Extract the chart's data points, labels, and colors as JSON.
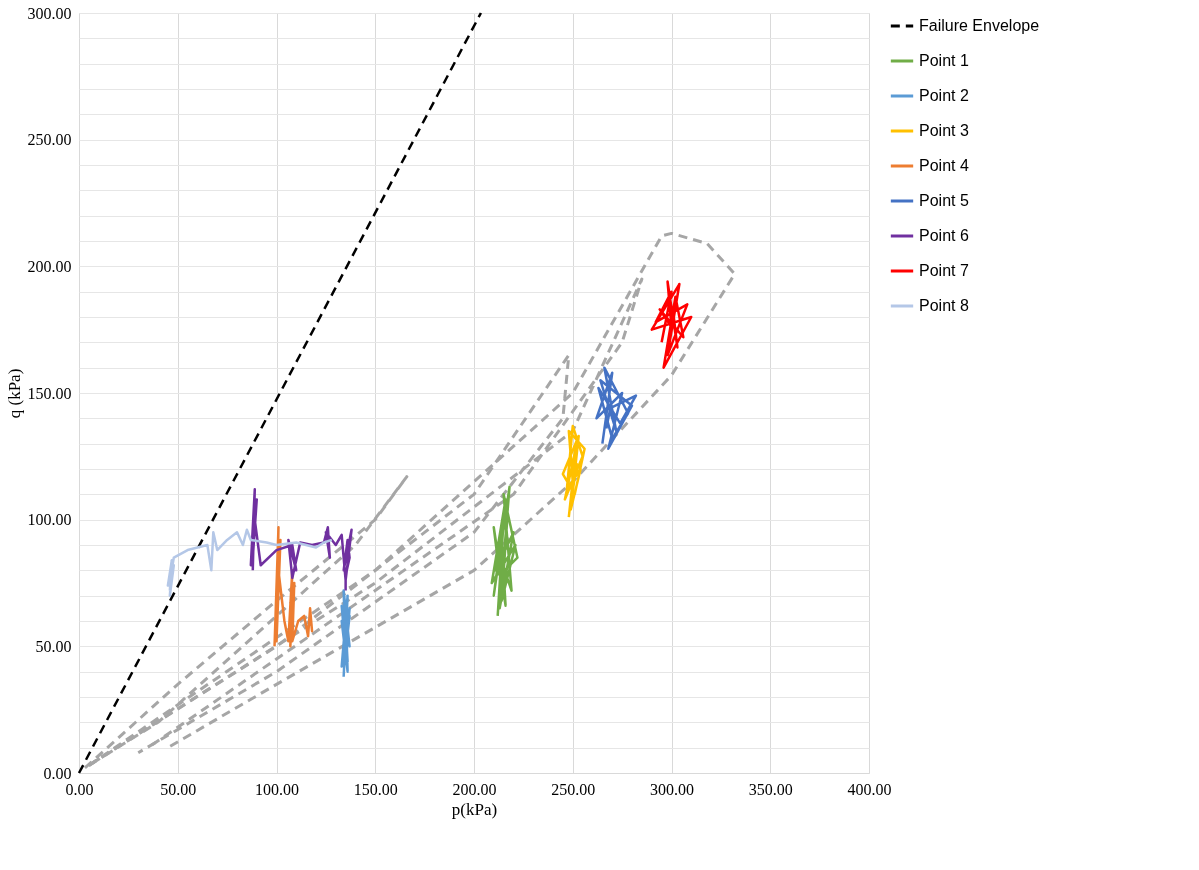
{
  "chart_data": {
    "type": "line",
    "xlabel": "p(kPa)",
    "ylabel": "q (kPa)",
    "xlim": [
      0,
      400
    ],
    "ylim": [
      0,
      300
    ],
    "xticks": [
      {
        "value": 0,
        "label": "0.00"
      },
      {
        "value": 50,
        "label": "50.00"
      },
      {
        "value": 100,
        "label": "100.00"
      },
      {
        "value": 150,
        "label": "150.00"
      },
      {
        "value": 200,
        "label": "200.00"
      },
      {
        "value": 250,
        "label": "250.00"
      },
      {
        "value": 300,
        "label": "300.00"
      },
      {
        "value": 350,
        "label": "350.00"
      },
      {
        "value": 400,
        "label": "400.00"
      }
    ],
    "yticks": [
      {
        "value": 0,
        "label": "0.00"
      },
      {
        "value": 10,
        "label": null
      },
      {
        "value": 20,
        "label": null
      },
      {
        "value": 30,
        "label": null
      },
      {
        "value": 40,
        "label": null
      },
      {
        "value": 50,
        "label": "50.00"
      },
      {
        "value": 60,
        "label": null
      },
      {
        "value": 70,
        "label": null
      },
      {
        "value": 80,
        "label": null
      },
      {
        "value": 90,
        "label": null
      },
      {
        "value": 100,
        "label": "100.00"
      },
      {
        "value": 110,
        "label": null
      },
      {
        "value": 120,
        "label": null
      },
      {
        "value": 130,
        "label": null
      },
      {
        "value": 140,
        "label": null
      },
      {
        "value": 150,
        "label": "150.00"
      },
      {
        "value": 160,
        "label": null
      },
      {
        "value": 170,
        "label": null
      },
      {
        "value": 180,
        "label": null
      },
      {
        "value": 190,
        "label": null
      },
      {
        "value": 200,
        "label": "200.00"
      },
      {
        "value": 210,
        "label": null
      },
      {
        "value": 220,
        "label": null
      },
      {
        "value": 230,
        "label": null
      },
      {
        "value": 240,
        "label": null
      },
      {
        "value": 250,
        "label": "250.00"
      },
      {
        "value": 260,
        "label": null
      },
      {
        "value": 270,
        "label": null
      },
      {
        "value": 280,
        "label": null
      },
      {
        "value": 290,
        "label": null
      },
      {
        "value": 300,
        "label": "300.00"
      }
    ],
    "grid": true,
    "legend": "right",
    "marker": "none",
    "series": [
      {
        "name": "Failure Envelope",
        "color": "#000000",
        "line_style": "dashed",
        "x": [
          0,
          203.5
        ],
        "values": [
          0,
          300
        ]
      },
      {
        "name": "Point 1",
        "color": "#70ad47",
        "line_style": "solid",
        "x": [
          212,
          215,
          210,
          218,
          213,
          220,
          211,
          216,
          209,
          221,
          214,
          217,
          212,
          219,
          215,
          222,
          213,
          210,
          216,
          214
        ],
        "values": [
          62,
          100,
          70,
          113,
          65,
          95,
          80,
          108,
          75,
          90,
          68,
          102,
          88,
          72,
          110,
          85,
          78,
          97,
          66,
          92
        ]
      },
      {
        "name": "Point 2",
        "color": "#5b9bd5",
        "line_style": "solid",
        "x": [
          134,
          136,
          133,
          137,
          135,
          134,
          137,
          133,
          136,
          135,
          134,
          137,
          135,
          133,
          136,
          135
        ],
        "values": [
          38,
          70,
          42,
          65,
          45,
          72,
          50,
          60,
          40,
          68,
          55,
          62,
          48,
          66,
          44,
          58
        ]
      },
      {
        "name": "Point 3",
        "color": "#ffc000",
        "line_style": "solid",
        "x": [
          248,
          252,
          246,
          255,
          250,
          247,
          254,
          249,
          253,
          245,
          251,
          256,
          248,
          250,
          252,
          249
        ],
        "values": [
          101,
          130,
          108,
          125,
          137,
          112,
          120,
          104,
          133,
          118,
          110,
          128,
          135,
          115,
          122,
          106
        ]
      },
      {
        "name": "Point 4",
        "color": "#ed7d31",
        "line_style": "solid",
        "x": [
          99,
          101,
          100,
          102,
          100,
          101,
          104,
          106,
          108,
          107,
          109,
          108,
          111,
          114,
          116,
          117,
          118,
          117
        ],
        "values": [
          50,
          97,
          55,
          92,
          52,
          80,
          60,
          52,
          80,
          50,
          75,
          52,
          60,
          62,
          54,
          65,
          56,
          64
        ]
      },
      {
        "name": "Point 5",
        "color": "#4472c4",
        "line_style": "solid",
        "x": [
          265,
          270,
          262,
          275,
          268,
          280,
          264,
          272,
          266,
          278,
          270,
          263,
          274,
          282,
          269,
          267
        ],
        "values": [
          130,
          158,
          140,
          150,
          128,
          145,
          155,
          135,
          160,
          142,
          132,
          152,
          138,
          149,
          144,
          136
        ]
      },
      {
        "name": "Point 6",
        "color": "#7030a0",
        "line_style": "solid",
        "x": [
          88,
          89,
          87,
          90,
          88,
          89,
          92,
          100,
          108,
          110,
          106,
          108,
          112,
          118,
          124,
          126,
          127,
          125,
          130,
          133,
          135,
          138,
          134,
          136,
          137,
          135,
          135
        ],
        "values": [
          80,
          112,
          82,
          108,
          85,
          100,
          82,
          88,
          90,
          80,
          92,
          77,
          91,
          90,
          91,
          97,
          85,
          95,
          90,
          94,
          76,
          96,
          80,
          92,
          85,
          78,
          72
        ]
      },
      {
        "name": "Point 7",
        "color": "#ff0000",
        "line_style": "solid",
        "x": [
          295,
          300,
          292,
          308,
          298,
          304,
          290,
          310,
          296,
          302,
          306,
          294,
          300,
          298,
          303,
          301
        ],
        "values": [
          170,
          190,
          178,
          185,
          165,
          193,
          175,
          180,
          160,
          188,
          172,
          183,
          176,
          194,
          168,
          181
        ]
      },
      {
        "name": "Point 8",
        "color": "#b4c7e7",
        "line_style": "solid",
        "x": [
          46,
          47,
          45,
          48,
          46,
          47,
          46,
          48,
          55,
          65,
          67,
          68,
          70,
          75,
          80,
          83,
          85,
          87,
          95,
          100,
          110,
          115,
          120,
          124,
          128
        ],
        "values": [
          72,
          84,
          74,
          82,
          70,
          80,
          76,
          85,
          88,
          90,
          80,
          95,
          88,
          92,
          95,
          90,
          96,
          92,
          91,
          90,
          91,
          90,
          89,
          91,
          92
        ]
      },
      {
        "color": "#a6a6a6",
        "line_style": "dashed",
        "x": [
          3,
          50,
          100,
          150,
          166,
          140,
          90,
          40,
          5
        ],
        "values": [
          2,
          35,
          68,
          100,
          117,
          90,
          55,
          20,
          3
        ]
      },
      {
        "color": "#a6a6a6",
        "line_style": "dashed",
        "x": [
          5,
          100,
          200,
          248,
          245,
          200,
          100,
          30
        ],
        "values": [
          3,
          50,
          110,
          165,
          140,
          95,
          40,
          8
        ]
      },
      {
        "color": "#a6a6a6",
        "line_style": "dashed",
        "x": [
          5,
          150,
          250,
          285,
          275,
          220,
          100,
          35
        ],
        "values": [
          3,
          75,
          135,
          195,
          170,
          110,
          45,
          10
        ]
      },
      {
        "color": "#a6a6a6",
        "line_style": "dashed",
        "x": [
          5,
          150,
          250,
          295,
          300,
          318,
          332,
          300,
          250,
          200,
          100,
          45
        ],
        "values": [
          3,
          80,
          150,
          212,
          213,
          209,
          197,
          157,
          115,
          80,
          35,
          10
        ]
      }
    ]
  }
}
